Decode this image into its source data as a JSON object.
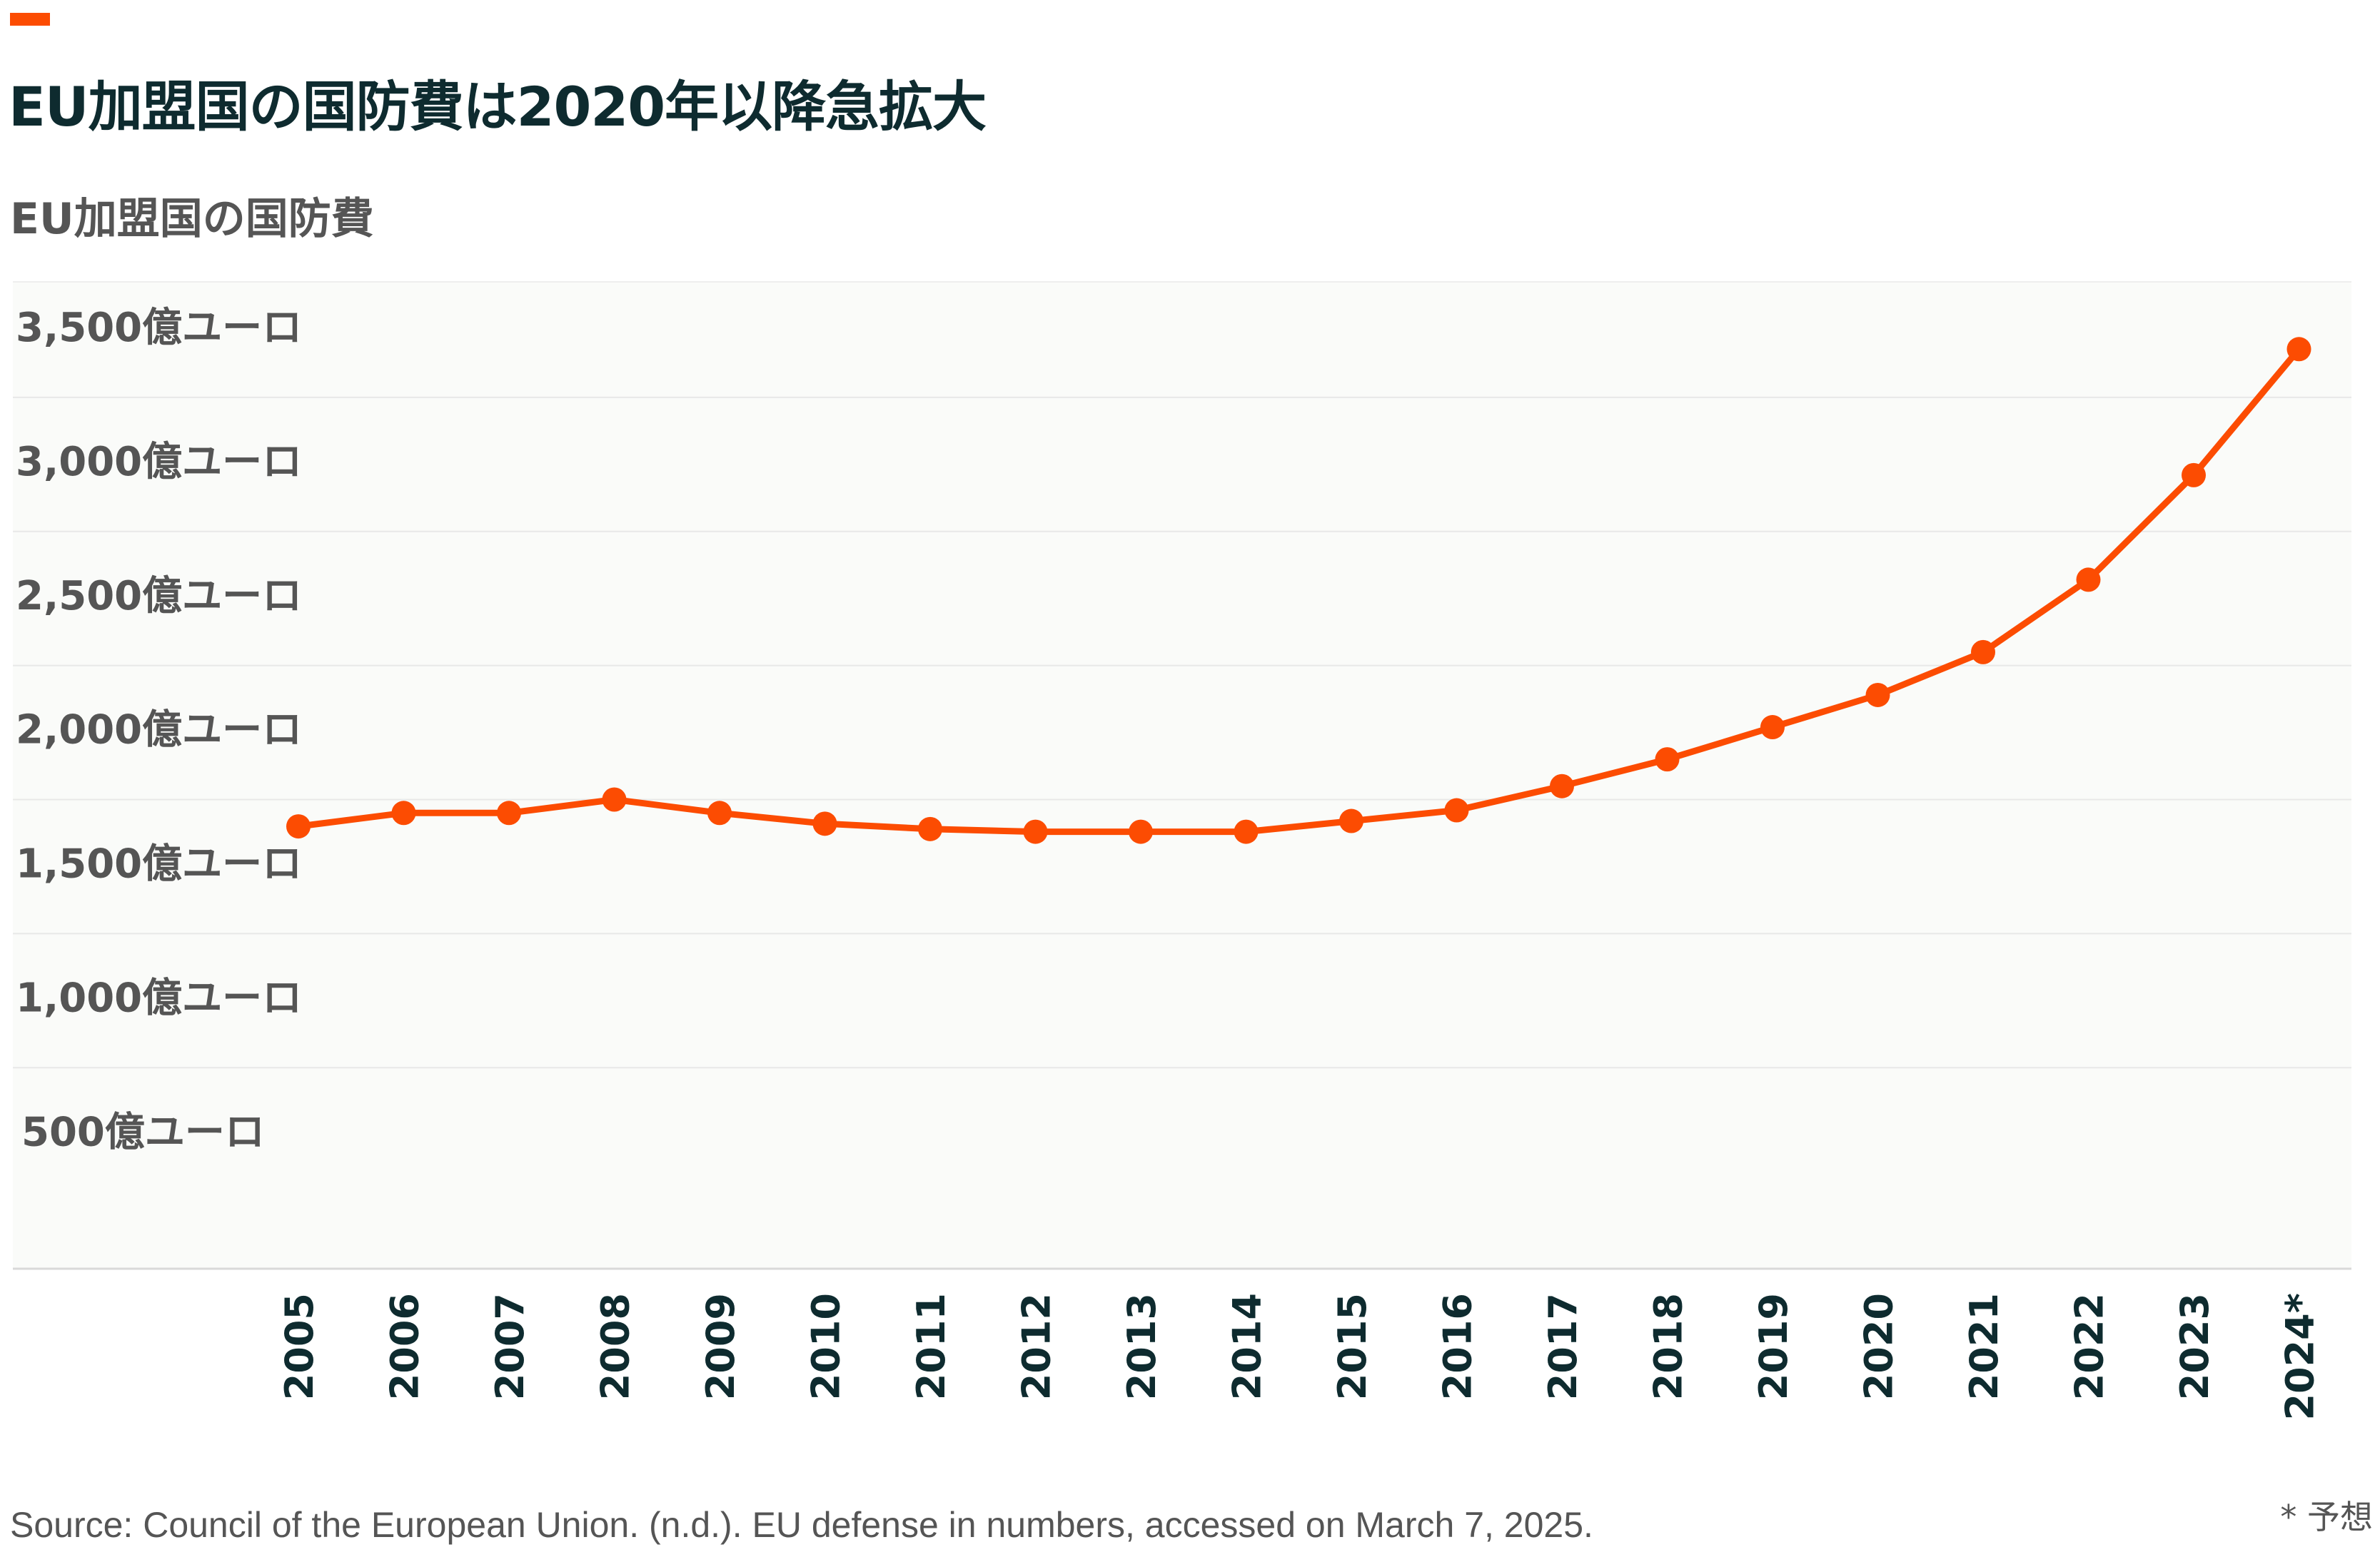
{
  "header": {
    "title": "EU加盟国の国防費は2020年以降急拡大",
    "subtitle": "EU加盟国の国防費"
  },
  "footer": {
    "source": "Source: Council of the European Union. (n.d.). EU defense in numbers, accessed on March 7, 2025.",
    "footnote": "* 予想"
  },
  "colors": {
    "accent": "#fc4c02",
    "line": "#fc4c02",
    "plot_background": "#fafbf9",
    "grid": "#e6e6e6",
    "title": "#0e2b2f",
    "axis_text": "#555555"
  },
  "chart_data": {
    "type": "line",
    "title": "EU加盟国の国防費は2020年以降急拡大",
    "ylabel": "EU加盟国の国防費",
    "xlabel": "",
    "grid": true,
    "legend": "none",
    "ylim": [
      0,
      3500
    ],
    "yticks": [
      {
        "value": 500,
        "label": "500億ユーロ"
      },
      {
        "value": 1000,
        "label": "1,000億ユーロ"
      },
      {
        "value": 1500,
        "label": "1,500億ユーロ"
      },
      {
        "value": 2000,
        "label": "2,000億ユーロ"
      },
      {
        "value": 2500,
        "label": "2,500億ユーロ"
      },
      {
        "value": 3000,
        "label": "3,000億ユーロ"
      },
      {
        "value": 3500,
        "label": "3,500億ユーロ"
      }
    ],
    "categories": [
      "2005",
      "2006",
      "2007",
      "2008",
      "2009",
      "2010",
      "2011",
      "2012",
      "2013",
      "2014",
      "2015",
      "2016",
      "2017",
      "2018",
      "2019",
      "2020",
      "2021",
      "2022",
      "2023",
      "2024*"
    ],
    "series": [
      {
        "values": [
          1650,
          1700,
          1700,
          1750,
          1700,
          1660,
          1640,
          1630,
          1630,
          1630,
          1670,
          1710,
          1800,
          1900,
          2020,
          2140,
          2300,
          2570,
          2960,
          3430
        ]
      }
    ]
  }
}
